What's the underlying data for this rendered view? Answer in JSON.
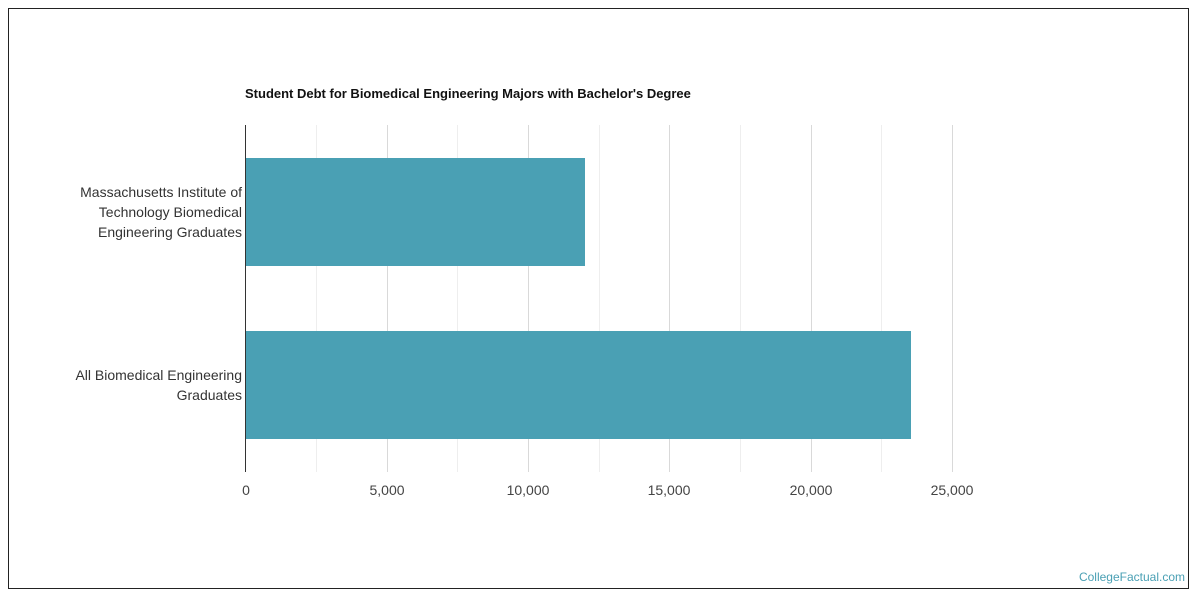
{
  "chart_data": {
    "type": "bar",
    "orientation": "horizontal",
    "title": "Student Debt for Biomedical Engineering Majors with Bachelor's Degree",
    "categories": [
      "Massachusetts Institute of Technology Biomedical Engineering Graduates",
      "All Biomedical Engineering Graduates"
    ],
    "category_lines": [
      [
        "Massachusetts Institute of",
        "Technology Biomedical",
        "Engineering Graduates"
      ],
      [
        "All Biomedical Engineering",
        "Graduates"
      ]
    ],
    "values": [
      12000,
      23500
    ],
    "xlabel": "",
    "ylabel": "",
    "xlim": [
      0,
      28000
    ],
    "x_ticks": [
      "0",
      "5,000",
      "10,000",
      "15,000",
      "20,000",
      "25,000"
    ],
    "x_tick_values": [
      0,
      5000,
      10000,
      15000,
      20000,
      25000
    ],
    "grid": true,
    "legend": null,
    "bar_color": "#4aa0b4"
  },
  "credit": "CollegeFactual.com"
}
